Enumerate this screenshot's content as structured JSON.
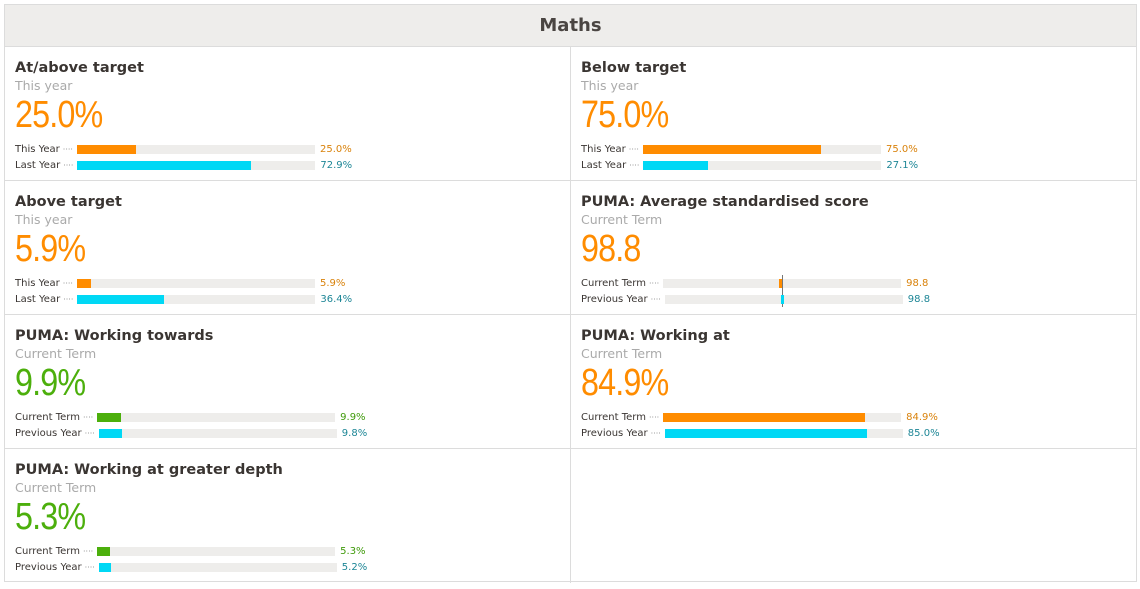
{
  "header": {
    "title": "Maths"
  },
  "colors": {
    "orange": "#ff8c00",
    "cyan": "#00d8f5",
    "green": "#4caf0c",
    "orange_text": "#d9820b",
    "teal_text": "#1d8696",
    "green_text": "#3f9a0a"
  },
  "cells": [
    {
      "title": "At/above target",
      "period": "This year",
      "value": "25.0%",
      "tone": "orange",
      "rows": [
        {
          "label": "This Year",
          "value": "25.0%",
          "pct": 25.0,
          "color": "orange"
        },
        {
          "label": "Last Year",
          "value": "72.9%",
          "pct": 72.9,
          "color": "cyan"
        }
      ]
    },
    {
      "title": "Below target",
      "period": "This year",
      "value": "75.0%",
      "tone": "orange",
      "rows": [
        {
          "label": "This Year",
          "value": "75.0%",
          "pct": 75.0,
          "color": "orange"
        },
        {
          "label": "Last Year",
          "value": "27.1%",
          "pct": 27.1,
          "color": "cyan"
        }
      ]
    },
    {
      "title": "Above target",
      "period": "This year",
      "value": "5.9%",
      "tone": "orange",
      "rows": [
        {
          "label": "This Year",
          "value": "5.9%",
          "pct": 5.9,
          "color": "orange"
        },
        {
          "label": "Last Year",
          "value": "36.4%",
          "pct": 36.4,
          "color": "cyan"
        }
      ]
    },
    {
      "title": "PUMA: Average standardised score",
      "period": "Current Term",
      "value": "98.8",
      "tone": "orange",
      "centered": true,
      "rows": [
        {
          "label": "Current Term",
          "value": "98.8",
          "score": 98.8,
          "color": "orange"
        },
        {
          "label": "Previous Year",
          "value": "98.8",
          "score": 98.8,
          "color": "cyan"
        }
      ]
    },
    {
      "title": "PUMA: Working towards",
      "period": "Current Term",
      "value": "9.9%",
      "tone": "green",
      "rows": [
        {
          "label": "Current Term",
          "value": "9.9%",
          "pct": 9.9,
          "color": "green"
        },
        {
          "label": "Previous Year",
          "value": "9.8%",
          "pct": 9.8,
          "color": "cyan"
        }
      ]
    },
    {
      "title": "PUMA: Working at",
      "period": "Current Term",
      "value": "84.9%",
      "tone": "orange",
      "rows": [
        {
          "label": "Current Term",
          "value": "84.9%",
          "pct": 84.9,
          "color": "orange"
        },
        {
          "label": "Previous Year",
          "value": "85.0%",
          "pct": 85.0,
          "color": "cyan"
        }
      ]
    },
    {
      "title": "PUMA: Working at greater depth",
      "period": "Current Term",
      "value": "5.3%",
      "tone": "green",
      "rows": [
        {
          "label": "Current Term",
          "value": "5.3%",
          "pct": 5.3,
          "color": "green"
        },
        {
          "label": "Previous Year",
          "value": "5.2%",
          "pct": 5.2,
          "color": "cyan"
        }
      ]
    }
  ]
}
